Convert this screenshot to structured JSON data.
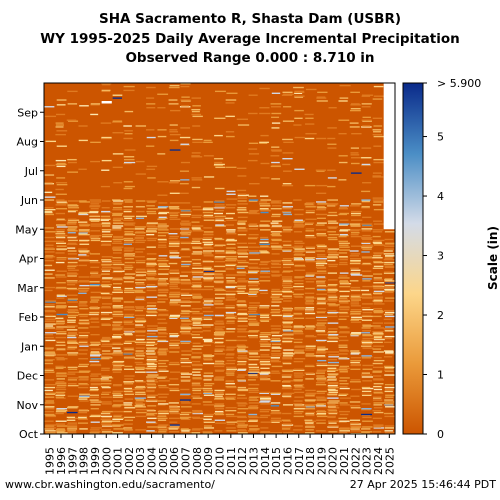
{
  "header": {
    "line1": "SHA Sacramento R, Shasta Dam (USBR)",
    "line2": "WY 1995-2025 Daily Average Incremental Precipitation",
    "line3": "Observed Range 0.000 : 8.710 in"
  },
  "footer": {
    "url": "www.cbr.washington.edu/sacramento/",
    "timestamp": "27 Apr 2025 15:46:44 PDT"
  },
  "chart_data": {
    "type": "heatmap",
    "title": "SHA Sacramento R, Shasta Dam (USBR)",
    "subtitle": "WY 1995-2025 Daily Average Incremental Precipitation",
    "x_categories": [
      "1995",
      "1996",
      "1997",
      "1998",
      "1999",
      "2000",
      "2001",
      "2002",
      "2003",
      "2004",
      "2005",
      "2006",
      "2007",
      "2008",
      "2009",
      "2010",
      "2011",
      "2012",
      "2013",
      "2014",
      "2015",
      "2016",
      "2017",
      "2018",
      "2019",
      "2020",
      "2021",
      "2022",
      "2023",
      "2024",
      "2025"
    ],
    "y_labels": [
      "Oct",
      "Nov",
      "Dec",
      "Jan",
      "Feb",
      "Mar",
      "Apr",
      "May",
      "Jun",
      "Jul",
      "Aug",
      "Sep"
    ],
    "colorbar": {
      "label": "Scale (in)",
      "ticks": [
        0,
        1,
        2,
        3,
        4,
        5
      ],
      "max_label": "> 5.900",
      "range": [
        0,
        5.9
      ],
      "colors": [
        "#cc5500",
        "#ea9a3a",
        "#fcd68a",
        "#d3dbe8",
        "#4a8dc5",
        "#0a2a8a"
      ]
    },
    "observed_range": [
      0.0,
      8.71
    ],
    "wy2025_last_month_with_data": "Apr",
    "background_color": "#cc5500"
  }
}
